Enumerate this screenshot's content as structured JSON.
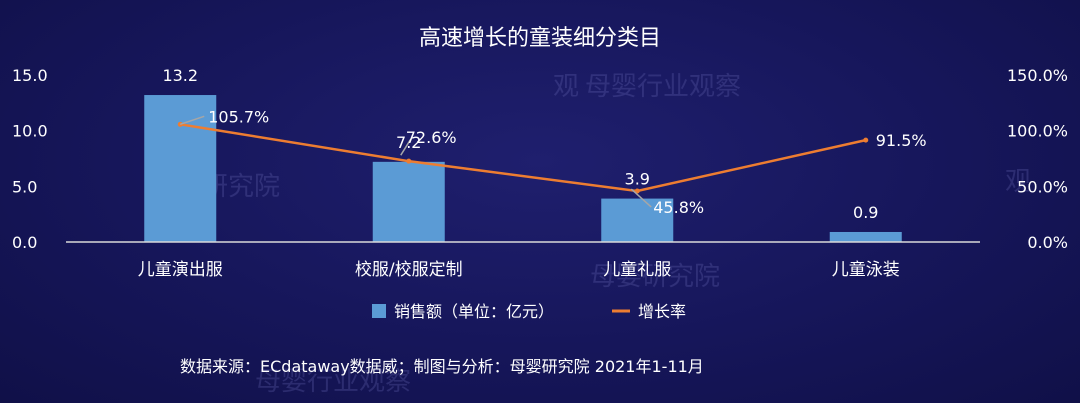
{
  "chart_data": {
    "type": "bar",
    "title": "高速增长的童装细分类目",
    "categories": [
      "儿童演出服",
      "校服/校服定制",
      "儿童礼服",
      "儿童泳装"
    ],
    "series": [
      {
        "name": "销售额（单位：亿元）",
        "type": "bar",
        "axis": "left",
        "values": [
          13.2,
          7.2,
          3.9,
          0.9
        ],
        "labels": [
          "13.2",
          "7.2",
          "3.9",
          "0.9"
        ]
      },
      {
        "name": "增长率",
        "type": "line",
        "axis": "right",
        "values": [
          105.7,
          72.6,
          45.8,
          91.5
        ],
        "labels": [
          "105.7%",
          "72.6%",
          "45.8%",
          "91.5%"
        ]
      }
    ],
    "y_left": {
      "ylim": [
        0,
        15
      ],
      "ticks": [
        "0.0",
        "5.0",
        "10.0",
        "15.0"
      ]
    },
    "y_right": {
      "ylim": [
        0,
        150
      ],
      "ticks": [
        "0.0%",
        "50.0%",
        "100.0%",
        "150.0%"
      ]
    },
    "legend": "bottom-center",
    "grid": false,
    "colors": {
      "bar": "#5b9bd5",
      "line": "#ed7d31",
      "leader": "#a6a6a6"
    }
  },
  "source": "数据来源：ECdataway数据威；制图与分析：母婴研究院 2021年1-11月",
  "watermarks": [
    "母婴研究院",
    "母婴行业观察",
    "观",
    "观"
  ]
}
